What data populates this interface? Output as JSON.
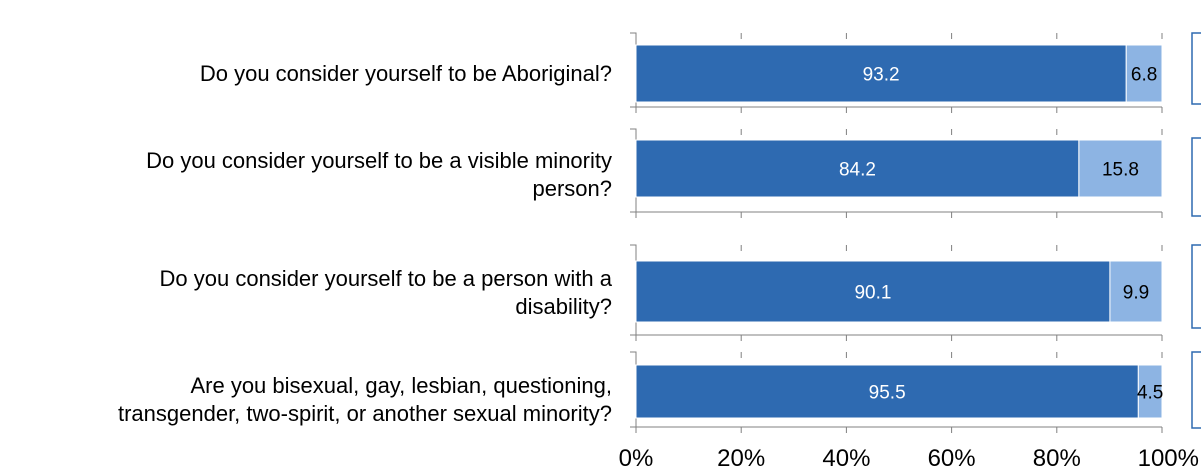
{
  "chart_data": {
    "type": "bar",
    "orientation": "horizontal",
    "stacked": "percent",
    "categories": [
      [
        "Do you consider yourself to be Aboriginal?"
      ],
      [
        "Do you consider yourself to be a visible minority",
        "person?"
      ],
      [
        "Do you consider yourself to be a person with a",
        "disability?"
      ],
      [
        "Are you bisexual, gay, lesbian, questioning,",
        "transgender, two-spirit, or another sexual minority?"
      ]
    ],
    "series": [
      {
        "values": [
          93.2,
          84.2,
          90.1,
          95.5
        ],
        "color": "#2E6AB1",
        "label_color": "#ffffff"
      },
      {
        "values": [
          6.8,
          15.8,
          9.9,
          4.5
        ],
        "color": "#8DB4E3",
        "label_color": "#000000"
      }
    ],
    "data_labels": [
      [
        "93.2",
        "84.2",
        "90.1",
        "95.5"
      ],
      [
        "6.8",
        "15.8",
        "9.9",
        "4.5"
      ]
    ],
    "x_ticks": [
      "0%",
      "20%",
      "40%",
      "60%",
      "80%",
      "100%"
    ],
    "xlim": [
      0,
      100
    ],
    "grid": false,
    "legend": "cropped-right"
  }
}
